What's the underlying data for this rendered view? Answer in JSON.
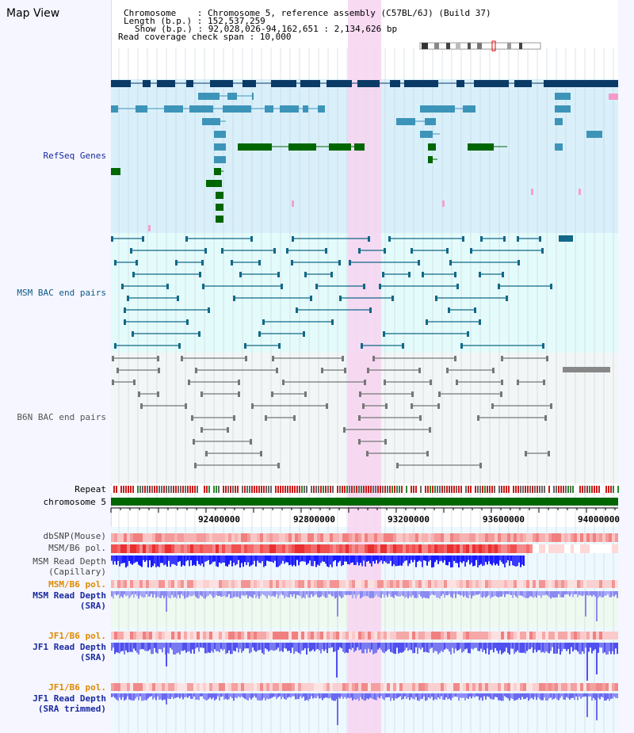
{
  "title": "Map View",
  "header": {
    "chromosome": "Chromosome    : Chromosome 5, reference assembly (C57BL/6J) (Build 37)",
    "length": "Length (b.p.) : 152,537,259",
    "show": "Show (b.p.) : 92,028,026-94,162,651 : 2,134,626 bp",
    "span": "Read coverage check span : 10,000"
  },
  "tracks": {
    "refseq": "RefSeq Genes",
    "msm_bac": "MSM BAC end pairs",
    "b6n_bac": "B6N BAC end pairs",
    "repeat": "Repeat",
    "chromosome": "chromosome 5",
    "dbsnp": "dbSNP(Mouse)",
    "msm_pol": "MSM/B6 pol.",
    "msm_depth_cap": "MSM Read Depth\n(Capillary)",
    "msm_pol2": "MSM/B6 pol.",
    "msm_depth_sra": "MSM Read Depth\n(SRA)",
    "jf1_pol": "JF1/B6 pol.",
    "jf1_depth_sra": "JF1 Read Depth\n(SRA)",
    "jf1_pol2": "JF1/B6 pol.",
    "jf1_depth_trim": "JF1 Read Depth\n(SRA trimmed)"
  },
  "axis": {
    "ticks": [
      "92400000",
      "92800000",
      "93200000",
      "93600000",
      "94000000"
    ]
  },
  "colors": {
    "highlight": "#f7d4f0",
    "refseq_bg": "#d9f0fb",
    "msm_bg": "#e4fbfb",
    "b6n_bg": "#f2f6f6",
    "gene_dark": "#0a3a66",
    "gene_mid": "#3d94b9",
    "gene_green": "#006600",
    "msm_line": "#116888",
    "b6n_line": "#777777",
    "chrom_bar": "#006600"
  }
}
